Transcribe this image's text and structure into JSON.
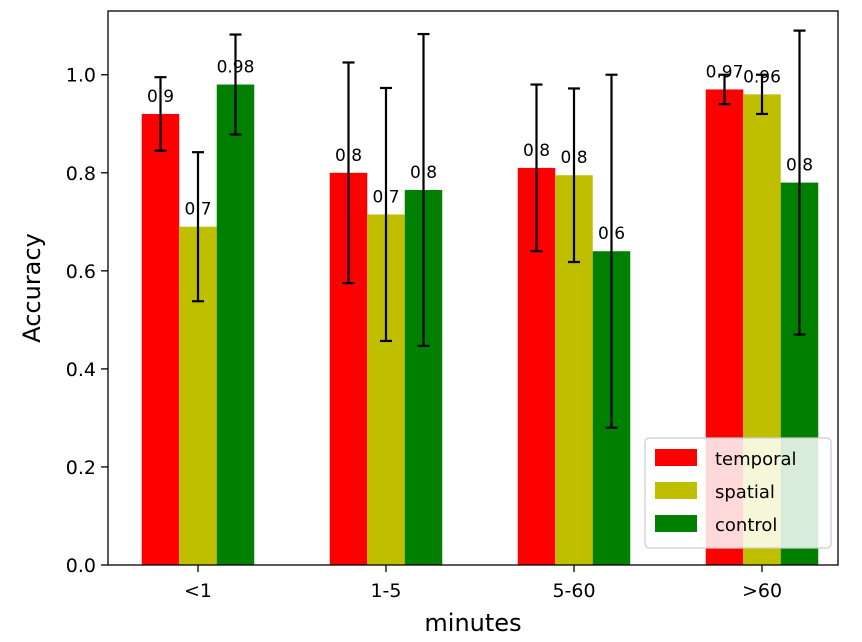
{
  "chart_data": {
    "type": "bar",
    "title": "",
    "xlabel": "minutes",
    "ylabel": "Accuracy",
    "categories": [
      "<1",
      "1-5",
      "5-60",
      ">60"
    ],
    "ylim": [
      0,
      1.13
    ],
    "yticks": [
      "0.0",
      "0.2",
      "0.4",
      "0.6",
      "0.8",
      "1.0"
    ],
    "grid": false,
    "legend_position": "bottom-right",
    "series": [
      {
        "name": "temporal",
        "color": "#ff0000",
        "values": [
          0.92,
          0.8,
          0.81,
          0.97
        ],
        "errors": [
          0.075,
          0.225,
          0.17,
          0.03
        ],
        "labels": [
          "0.9",
          "0.8",
          "0.8",
          "0.97"
        ]
      },
      {
        "name": "spatial",
        "color": "#bfbf00",
        "values": [
          0.69,
          0.715,
          0.795,
          0.96
        ],
        "errors": [
          0.152,
          0.258,
          0.177,
          0.04
        ],
        "labels": [
          "0.7",
          "0.7",
          "0.8",
          "0.96"
        ]
      },
      {
        "name": "control",
        "color": "#008000",
        "values": [
          0.98,
          0.765,
          0.64,
          0.78
        ],
        "errors": [
          0.102,
          0.318,
          0.36,
          0.31
        ],
        "labels": [
          "0.98",
          "0.8",
          "0.6",
          "0.8"
        ]
      }
    ]
  }
}
